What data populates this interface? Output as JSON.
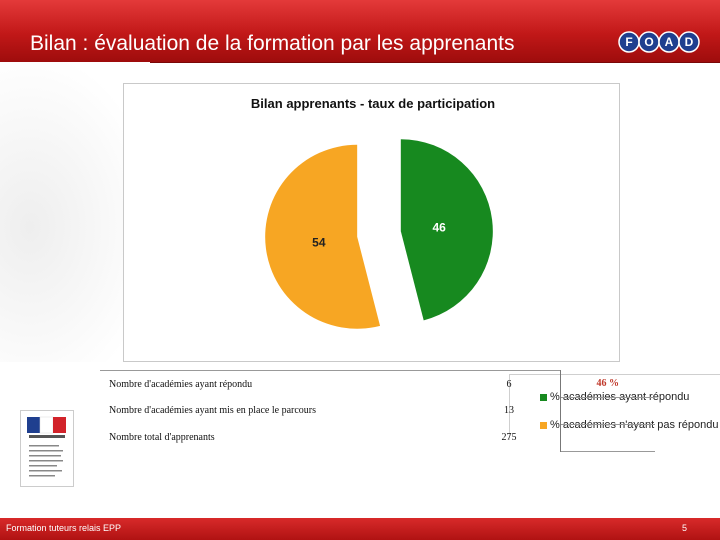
{
  "header": {
    "title": "Bilan : évaluation de la formation par les apprenants",
    "logo_letters": [
      "F",
      "O",
      "A",
      "D"
    ]
  },
  "chart_data": {
    "type": "pie",
    "title": "Bilan apprenants - taux de participation",
    "slices": [
      {
        "name": "% académies ayant répondu",
        "value": 46,
        "label": "46",
        "color": "#17891f"
      },
      {
        "name": "% académies n'ayant pas répondu",
        "value": 54,
        "label": "54",
        "color": "#f7a623"
      }
    ],
    "legend_position": "bottom-right",
    "exploded": true
  },
  "table": {
    "rows": [
      {
        "label": "Nombre d'académies ayant répondu",
        "value": "6",
        "percent": "46 %"
      },
      {
        "label": "Nombre d'académies ayant mis en place le parcours",
        "value": "13",
        "percent": ""
      },
      {
        "label": "Nombre total d'apprenants",
        "value": "275",
        "percent": ""
      }
    ]
  },
  "footer": {
    "left_text": "Formation tuteurs relais EPP",
    "page_number": "5"
  },
  "colors": {
    "header_red": "#c11818",
    "accent_red": "#c0392b",
    "green": "#17891f",
    "orange": "#f7a623"
  }
}
